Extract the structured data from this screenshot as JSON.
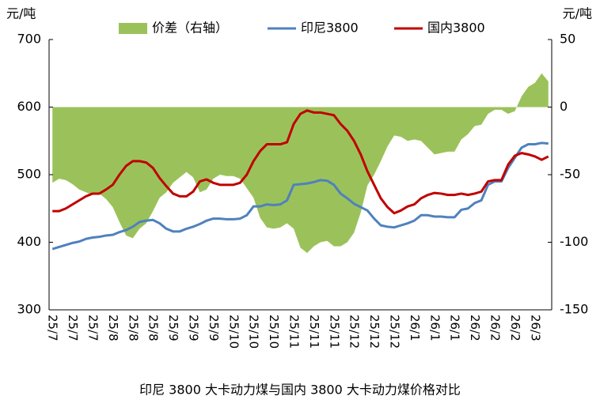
{
  "chart_data": {
    "type": "line",
    "title": "印尼 3800 大卡动力煤与国内 3800 大卡动力煤价格对比",
    "y_label": "元/吨",
    "y2_label": "元/吨",
    "categories": [
      "25/7",
      null,
      null,
      "25/7",
      null,
      null,
      "25/7",
      null,
      null,
      "25/8",
      null,
      null,
      "25/8",
      null,
      null,
      "25/8",
      null,
      null,
      "25/9",
      null,
      null,
      "25/9",
      null,
      null,
      "25/9",
      null,
      null,
      "25/10",
      null,
      null,
      "25/10",
      null,
      null,
      "25/10",
      null,
      null,
      "25/11",
      null,
      null,
      "25/11",
      null,
      null,
      "25/11",
      null,
      null,
      "25/12",
      null,
      null,
      "25/12",
      null,
      null,
      "25/12",
      null,
      null,
      "26/1",
      null,
      null,
      "26/1",
      null,
      null,
      "26/1",
      null,
      null,
      "26/2",
      null,
      null,
      "26/2",
      null,
      null,
      "26/2",
      null,
      null,
      "26/3",
      null,
      null
    ],
    "ylim": [
      300,
      700
    ],
    "yticks": [
      300,
      400,
      500,
      600,
      700
    ],
    "y2lim": [
      -150,
      50
    ],
    "y2ticks": [
      -150,
      -100,
      -50,
      0,
      50
    ],
    "legend": "top",
    "series": [
      {
        "name": "价差（右轴）",
        "type": "area",
        "axis": "y2",
        "color": "#9bc25a",
        "values": [
          -56,
          -53,
          -54,
          -57,
          -61,
          -63,
          -65,
          -64,
          -68,
          -74,
          -85,
          -95,
          -97,
          -90,
          -86,
          -77,
          -67,
          -63,
          -56,
          -52,
          -48,
          -52,
          -63,
          -61,
          -53,
          -50,
          -51,
          -51,
          -53,
          -60,
          -67,
          -82,
          -89,
          -90,
          -89,
          -86,
          -90,
          -104,
          -108,
          -103,
          -100,
          -99,
          -103,
          -103,
          -100,
          -93,
          -78,
          -58,
          -50,
          -40,
          -29,
          -21,
          -22,
          -25,
          -24,
          -25,
          -30,
          -35,
          -34,
          -33,
          -33,
          -24,
          -20,
          -14,
          -13,
          -5,
          -2,
          -2,
          -5,
          -3,
          8,
          15,
          18,
          25,
          19
        ]
      },
      {
        "name": "印尼3800",
        "type": "line",
        "color": "#4f81bd",
        "values": [
          390,
          393,
          396,
          399,
          401,
          405,
          407,
          408,
          410,
          411,
          415,
          418,
          423,
          430,
          432,
          433,
          428,
          420,
          416,
          416,
          420,
          423,
          427,
          432,
          435,
          435,
          434,
          434,
          435,
          440,
          453,
          453,
          456,
          455,
          456,
          462,
          485,
          486,
          487,
          489,
          492,
          491,
          485,
          472,
          465,
          457,
          452,
          447,
          435,
          425,
          423,
          422,
          425,
          428,
          432,
          440,
          440,
          438,
          438,
          437,
          437,
          448,
          450,
          458,
          462,
          485,
          490,
          490,
          510,
          525,
          540,
          545,
          545,
          547,
          546
        ]
      },
      {
        "name": "国内3800",
        "type": "line",
        "color": "#c00000",
        "values": [
          446,
          446,
          450,
          456,
          462,
          468,
          472,
          472,
          478,
          485,
          500,
          513,
          520,
          520,
          518,
          510,
          495,
          483,
          472,
          468,
          468,
          475,
          490,
          493,
          488,
          485,
          485,
          485,
          488,
          500,
          520,
          535,
          545,
          545,
          545,
          548,
          575,
          590,
          595,
          592,
          592,
          590,
          588,
          575,
          565,
          550,
          530,
          505,
          485,
          465,
          452,
          443,
          447,
          453,
          456,
          465,
          470,
          473,
          472,
          470,
          470,
          472,
          470,
          472,
          475,
          490,
          492,
          492,
          515,
          528,
          532,
          530,
          527,
          522,
          527
        ]
      }
    ]
  }
}
